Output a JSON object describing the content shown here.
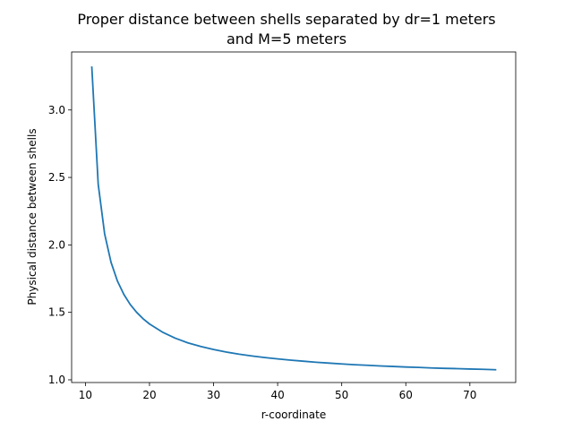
{
  "chart_data": {
    "type": "line",
    "title_line1": "Proper distance between shells separated by dr=1 meters",
    "title_line2": "and M=5 meters",
    "xlabel": "r-coordinate",
    "ylabel": "Physical distance between shells",
    "xlim": [
      7.85,
      77.15
    ],
    "ylim": [
      0.98,
      3.43
    ],
    "xticks": [
      10,
      20,
      30,
      40,
      50,
      60,
      70
    ],
    "yticks": [
      1.0,
      1.5,
      2.0,
      2.5,
      3.0
    ],
    "ytick_labels": [
      "1.0",
      "1.5",
      "2.0",
      "2.5",
      "3.0"
    ],
    "grid": false,
    "line_color": "#1f77b4",
    "series": [
      {
        "x": [
          11,
          12,
          13,
          14,
          15,
          16,
          17,
          18,
          19,
          20,
          22,
          24,
          26,
          28,
          30,
          32,
          34,
          36,
          38,
          40,
          42,
          44,
          46,
          48,
          50,
          52,
          54,
          56,
          58,
          60,
          62,
          64,
          66,
          68,
          70,
          72,
          74
        ],
        "values": [
          3.317,
          2.449,
          2.082,
          1.871,
          1.732,
          1.633,
          1.558,
          1.5,
          1.453,
          1.414,
          1.354,
          1.309,
          1.274,
          1.247,
          1.225,
          1.206,
          1.19,
          1.177,
          1.165,
          1.155,
          1.146,
          1.138,
          1.13,
          1.124,
          1.118,
          1.112,
          1.108,
          1.103,
          1.099,
          1.095,
          1.092,
          1.088,
          1.085,
          1.083,
          1.08,
          1.078,
          1.075
        ]
      }
    ]
  }
}
